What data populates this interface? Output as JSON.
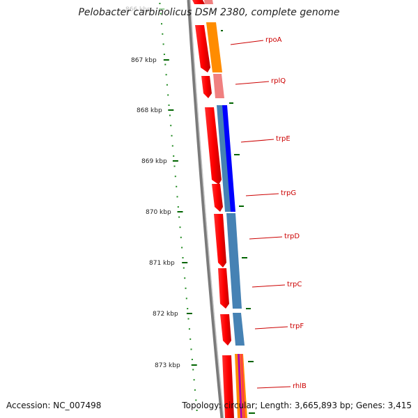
{
  "title": "Pelobacter carbinolicus DSM 2380, complete genome",
  "footer": {
    "accession": "Accession: NC_007498",
    "summary": "Topology: circular; Length: 3,665,893 bp; Genes: 3,415"
  },
  "ruler": {
    "faded_label": "866 kbp",
    "labels": [
      "867 kbp",
      "868 kbp",
      "869 kbp",
      "870 kbp",
      "871 kbp",
      "872 kbp",
      "873 kbp"
    ]
  },
  "genes": [
    {
      "name": "rpoA",
      "color": "#ff8c00"
    },
    {
      "name": "rplQ",
      "color": "#f08080"
    },
    {
      "name": "trpE",
      "color": "#0000ff"
    },
    {
      "name": "trpG",
      "color": "#4682b4"
    },
    {
      "name": "trpD",
      "color": "#4682b4"
    },
    {
      "name": "trpC",
      "color": "#4682b4"
    },
    {
      "name": "trpF",
      "color": "#4682b4"
    },
    {
      "name": "rhlB",
      "color": "#ff8c00"
    }
  ],
  "colors": {
    "cds": "#ff0000",
    "backbone": "#808080",
    "tick": "#006400",
    "label_line": "#cc0000"
  }
}
